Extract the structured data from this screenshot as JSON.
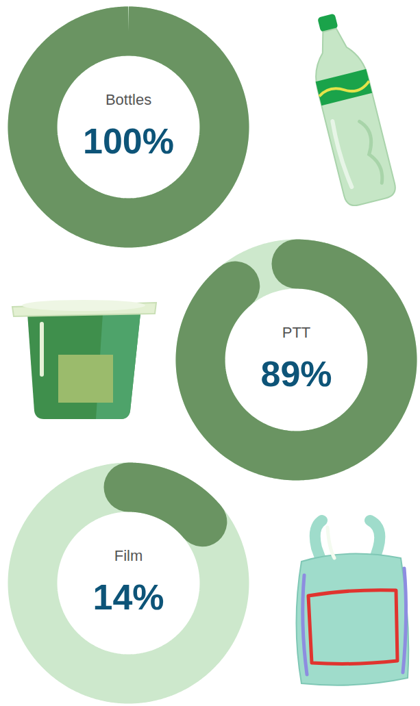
{
  "chart_data": {
    "type": "donut",
    "categories": [
      "Bottles",
      "PTT",
      "Film"
    ],
    "values": [
      100,
      89,
      14
    ],
    "value_labels": [
      "100%",
      "89%",
      "14%"
    ],
    "data_labels": true,
    "color": "#6a9462",
    "ylim": [
      0,
      100
    ]
  }
}
